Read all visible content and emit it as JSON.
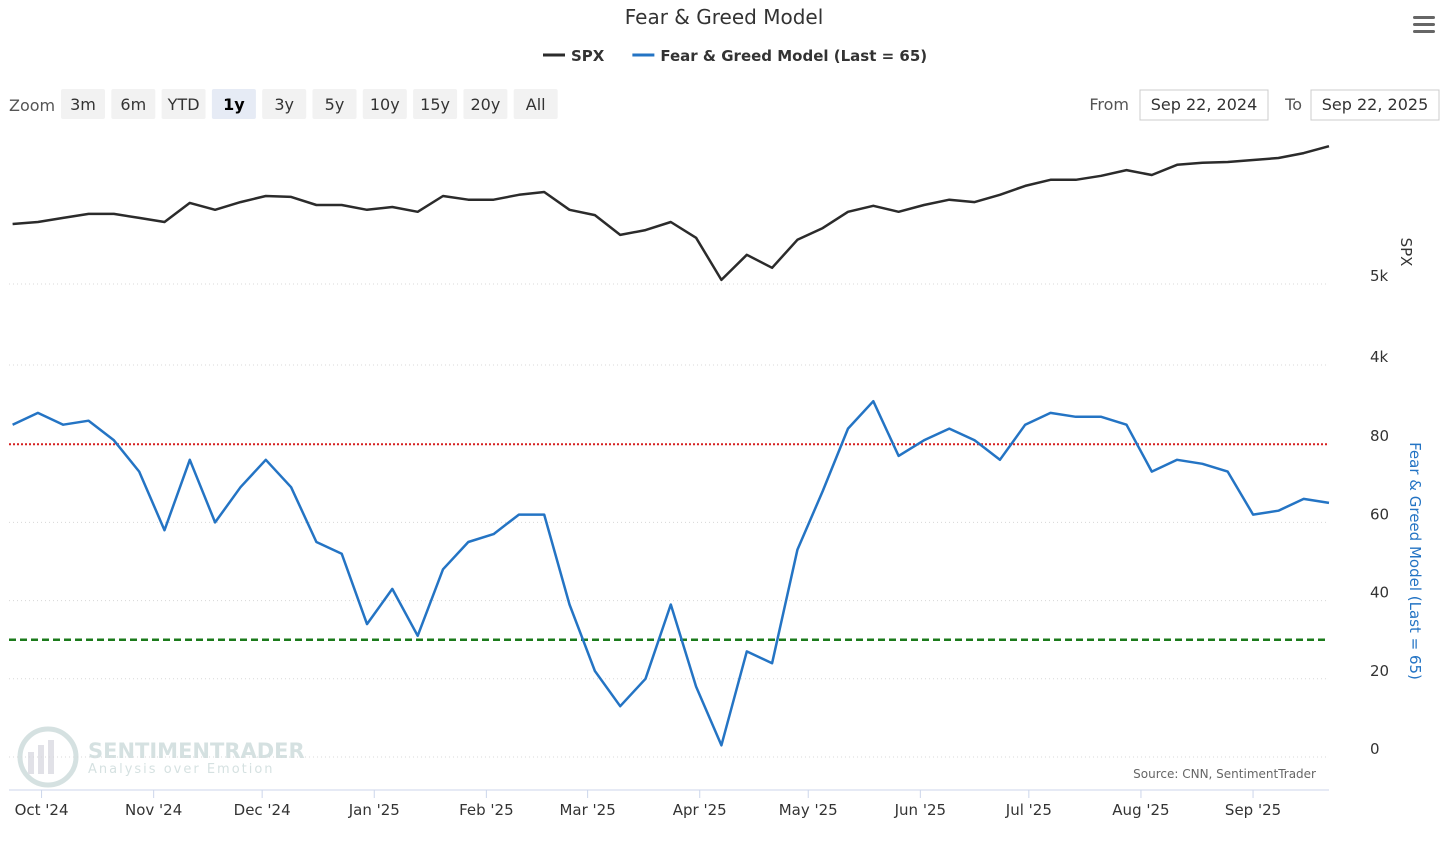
{
  "zoom": {
    "label": "Zoom",
    "buttons": [
      "3m",
      "6m",
      "YTD",
      "1y",
      "3y",
      "5y",
      "10y",
      "15y",
      "20y",
      "All"
    ],
    "selected": "1y"
  },
  "range": {
    "from_label": "From",
    "from": "Sep 22, 2024",
    "to_label": "To",
    "to": "Sep 22, 2025"
  },
  "watermark": {
    "name": "SENTIMENTRADER",
    "tagline": "Analysis over Emotion"
  },
  "chart_data": {
    "type": "line",
    "title": "Fear & Greed Model",
    "source": "Source: CNN, SentimentTrader",
    "x": [
      "2024-09-23",
      "2024-09-30",
      "2024-10-07",
      "2024-10-14",
      "2024-10-21",
      "2024-10-28",
      "2024-11-04",
      "2024-11-11",
      "2024-11-18",
      "2024-11-25",
      "2024-12-02",
      "2024-12-09",
      "2024-12-16",
      "2024-12-23",
      "2024-12-30",
      "2025-01-06",
      "2025-01-13",
      "2025-01-20",
      "2025-01-27",
      "2025-02-03",
      "2025-02-10",
      "2025-02-17",
      "2025-02-24",
      "2025-03-03",
      "2025-03-10",
      "2025-03-17",
      "2025-03-24",
      "2025-03-31",
      "2025-04-07",
      "2025-04-14",
      "2025-04-21",
      "2025-04-28",
      "2025-05-05",
      "2025-05-12",
      "2025-05-19",
      "2025-05-26",
      "2025-06-02",
      "2025-06-09",
      "2025-06-16",
      "2025-06-23",
      "2025-06-30",
      "2025-07-07",
      "2025-07-14",
      "2025-07-21",
      "2025-07-28",
      "2025-08-04",
      "2025-08-11",
      "2025-08-18",
      "2025-08-25",
      "2025-09-01",
      "2025-09-08",
      "2025-09-15",
      "2025-09-22"
    ],
    "xlim": [
      "2024-09-22",
      "2025-09-22"
    ],
    "xticks": [
      {
        "value": "2024-10-01",
        "label": "Oct '24"
      },
      {
        "value": "2024-11-01",
        "label": "Nov '24"
      },
      {
        "value": "2024-12-01",
        "label": "Dec '24"
      },
      {
        "value": "2025-01-01",
        "label": "Jan '25"
      },
      {
        "value": "2025-02-01",
        "label": "Feb '25"
      },
      {
        "value": "2025-03-01",
        "label": "Mar '25"
      },
      {
        "value": "2025-04-01",
        "label": "Apr '25"
      },
      {
        "value": "2025-05-01",
        "label": "May '25"
      },
      {
        "value": "2025-06-01",
        "label": "Jun '25"
      },
      {
        "value": "2025-07-01",
        "label": "Jul '25"
      },
      {
        "value": "2025-08-01",
        "label": "Aug '25"
      },
      {
        "value": "2025-09-01",
        "label": "Sep '25"
      }
    ],
    "ylabel": "SPX",
    "ylim": [
      4000,
      6900
    ],
    "yticks": [
      {
        "value": 4000,
        "label": "4k"
      },
      {
        "value": 5000,
        "label": "5k"
      }
    ],
    "y2label": "Fear & Greed Model (Last = 65)",
    "y2lim": [
      0,
      100
    ],
    "y2ticks": [
      0,
      20,
      40,
      60,
      80
    ],
    "grid": true,
    "reference_lines": [
      {
        "value": 80,
        "color": "#d62020",
        "style": "dotted"
      },
      {
        "value": 30,
        "color": "#1b7a1b",
        "style": "dashed"
      }
    ],
    "series": [
      {
        "name": "SPX",
        "color": "#2b2b2b",
        "axis": "y",
        "values": [
          5740,
          5765,
          5815,
          5865,
          5865,
          5815,
          5765,
          6000,
          5915,
          6010,
          6085,
          6075,
          5975,
          5975,
          5915,
          5950,
          5890,
          6085,
          6040,
          6040,
          6100,
          6135,
          5915,
          5850,
          5605,
          5665,
          5765,
          5570,
          5050,
          5360,
          5200,
          5545,
          5690,
          5890,
          5965,
          5890,
          5975,
          6040,
          6010,
          6100,
          6210,
          6285,
          6285,
          6335,
          6405,
          6345,
          6470,
          6495,
          6505,
          6530,
          6555,
          6615,
          6700
        ]
      },
      {
        "name": "Fear & Greed Model (Last = 65)",
        "color": "#2474c4",
        "axis": "y2",
        "values": [
          85,
          88,
          85,
          86,
          81,
          73,
          58,
          76,
          60,
          69,
          76,
          69,
          55,
          52,
          34,
          43,
          31,
          48,
          55,
          57,
          62,
          62,
          39,
          22,
          13,
          20,
          39,
          18,
          3,
          27,
          24,
          53,
          68,
          84,
          91,
          77,
          81,
          84,
          81,
          76,
          85,
          88,
          87,
          87,
          85,
          73,
          76,
          75,
          73,
          62,
          63,
          66,
          65
        ]
      }
    ]
  }
}
